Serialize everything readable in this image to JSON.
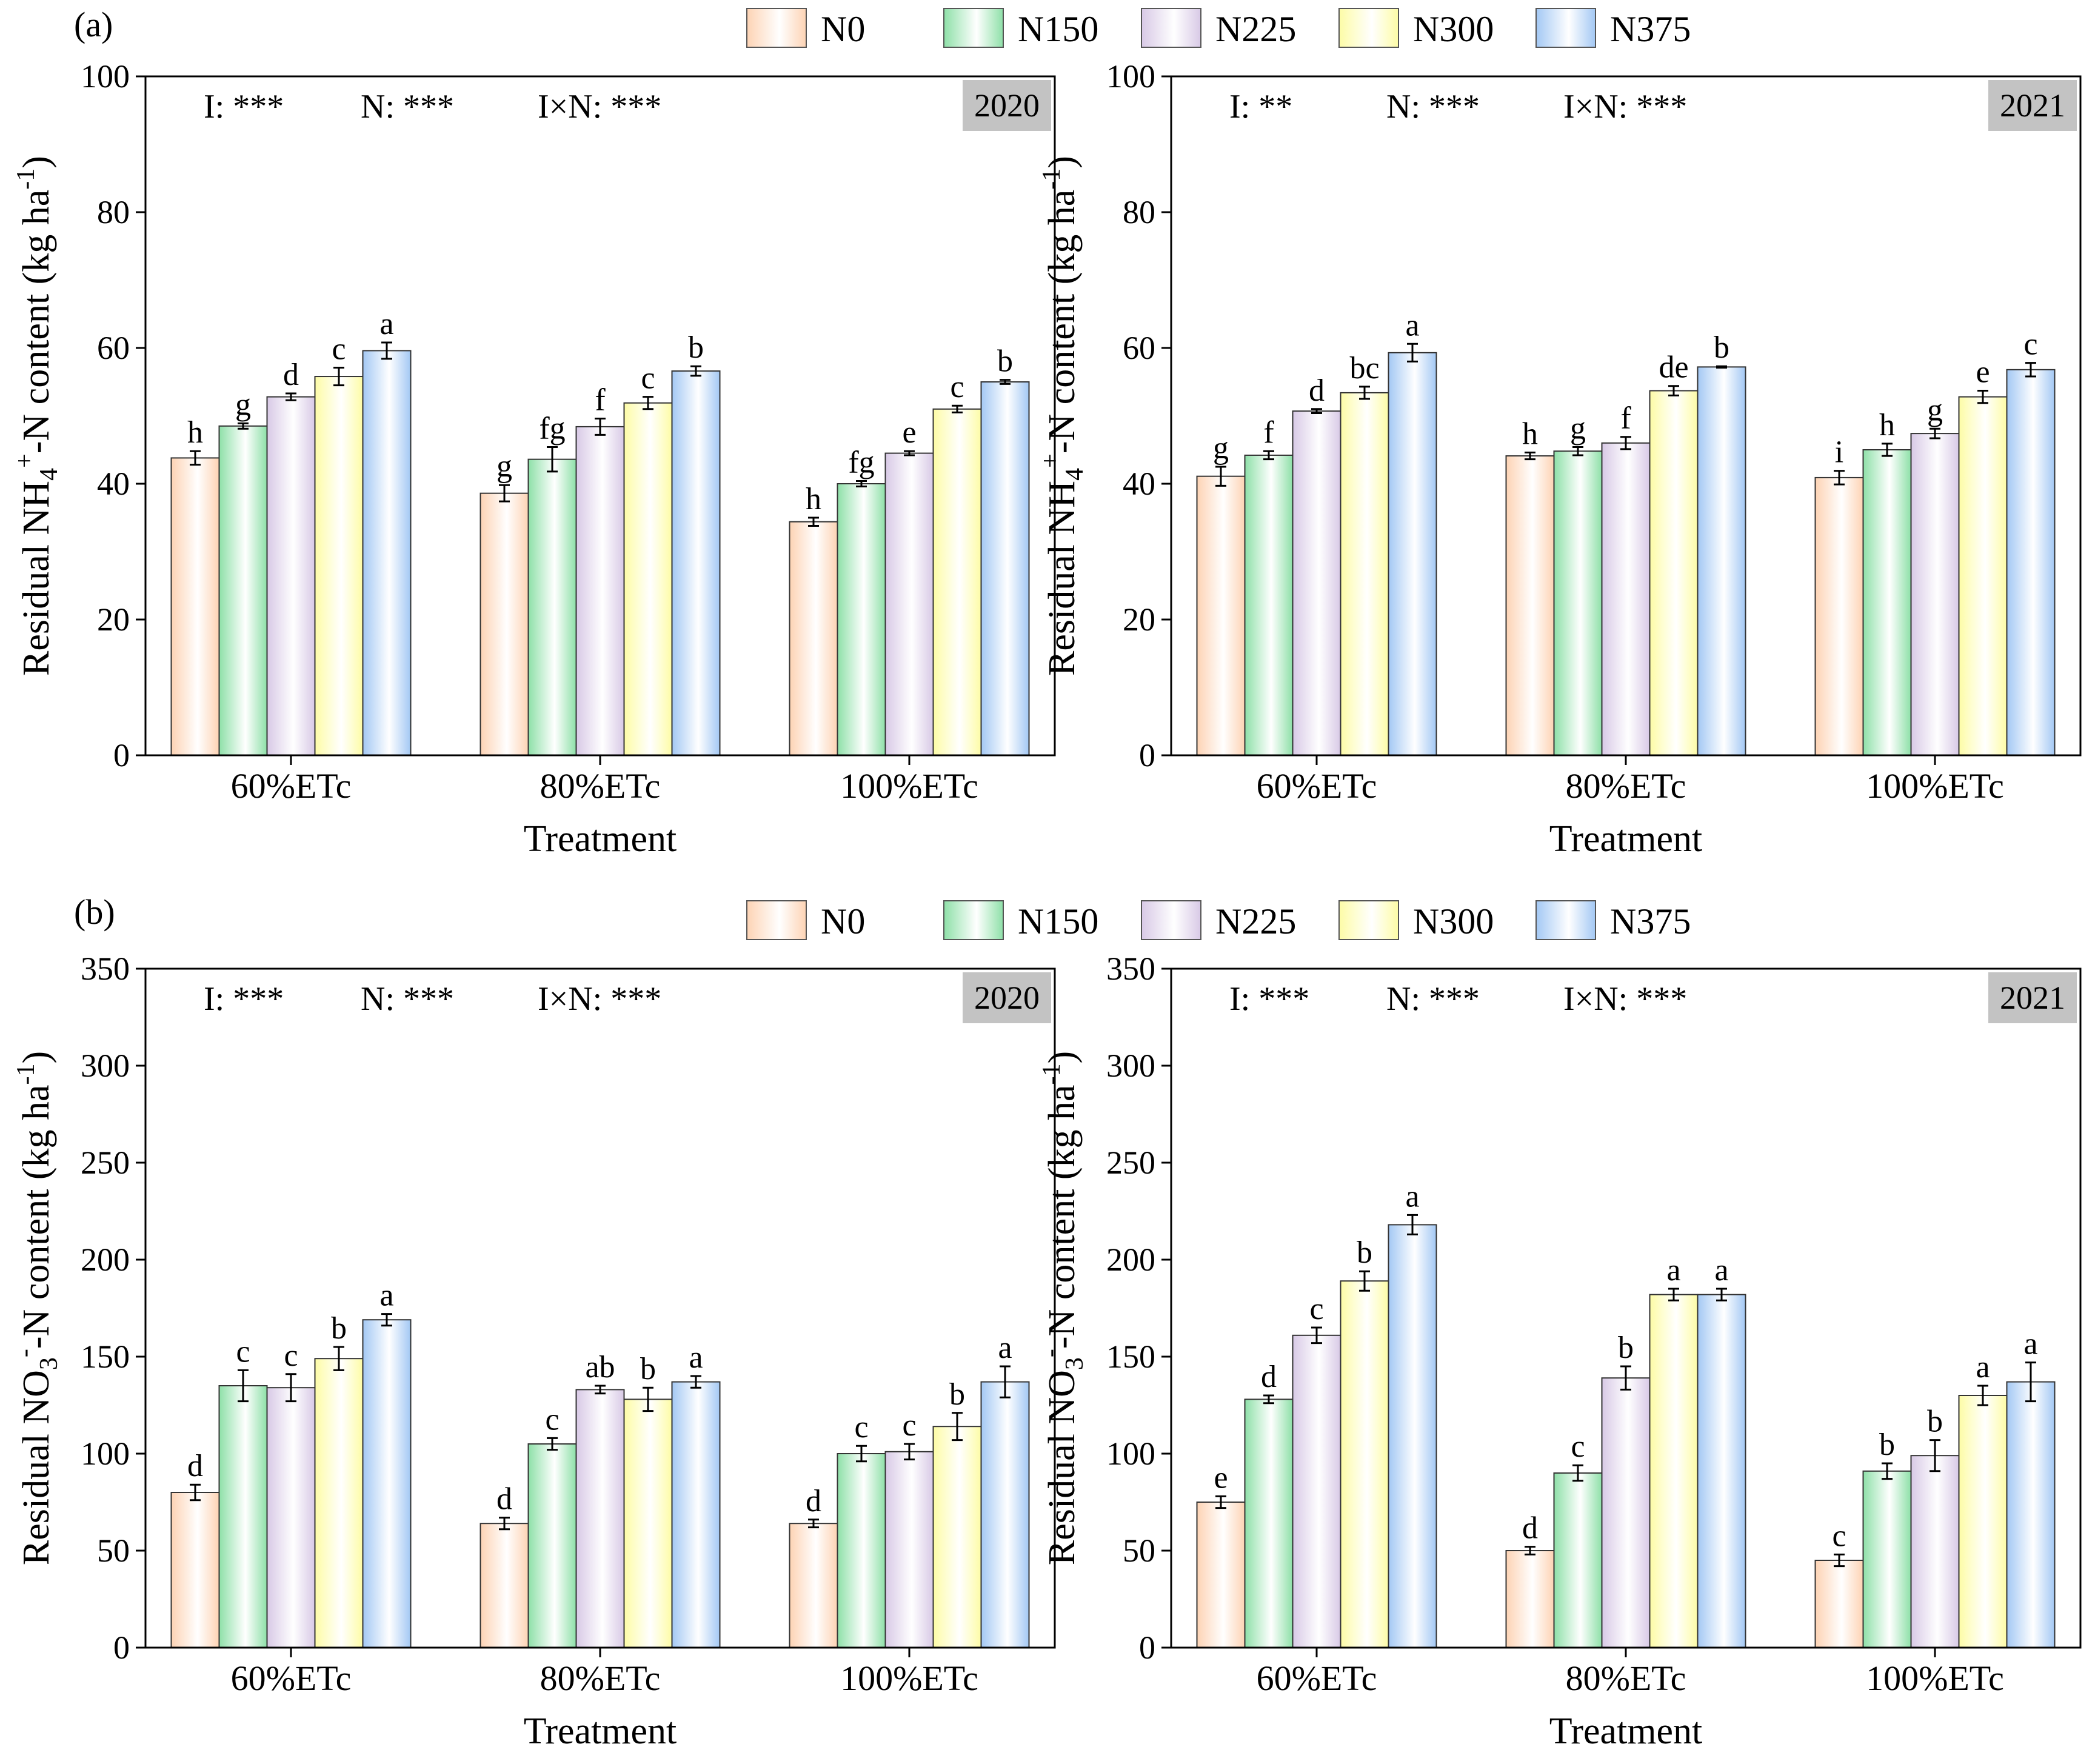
{
  "legend": [
    {
      "key": "N0",
      "color": "#fdd3b4",
      "label": "N0"
    },
    {
      "key": "N150",
      "color": "#8ee0a8",
      "label": "N150"
    },
    {
      "key": "N225",
      "color": "#d8c9e6",
      "label": "N225"
    },
    {
      "key": "N300",
      "color": "#fdfca6",
      "label": "N300"
    },
    {
      "key": "N375",
      "color": "#a3c8f4",
      "label": "N375"
    }
  ],
  "panel_labels": {
    "a": "(a)",
    "b": "(b)"
  },
  "chart_data": [
    {
      "type": "bar",
      "panel": "a",
      "year": "2020",
      "stats": {
        "I": "I: ***",
        "N": "N: ***",
        "IxN": "I×N: ***"
      },
      "xlabel": "Treatment",
      "ylabel_parts": [
        "Residual NH",
        "4",
        "+",
        "-N content (kg ha",
        "-1",
        ")"
      ],
      "ylim": [
        0,
        100
      ],
      "yticks": [
        0,
        20,
        40,
        60,
        80,
        100
      ],
      "categories": [
        "60%ETc",
        "80%ETc",
        "100%ETc"
      ],
      "series": [
        {
          "name": "N0",
          "values": [
            43.8,
            38.6,
            34.4
          ],
          "errors": [
            1.0,
            1.2,
            0.6
          ],
          "letters": [
            "h",
            "g",
            "h"
          ]
        },
        {
          "name": "N150",
          "values": [
            48.5,
            43.6,
            40.0
          ],
          "errors": [
            0.4,
            1.8,
            0.4
          ],
          "letters": [
            "g",
            "fg",
            "fg"
          ]
        },
        {
          "name": "N225",
          "values": [
            52.8,
            48.4,
            44.5
          ],
          "errors": [
            0.5,
            1.2,
            0.3
          ],
          "letters": [
            "d",
            "f",
            "e"
          ]
        },
        {
          "name": "N300",
          "values": [
            55.8,
            51.9,
            51.0
          ],
          "errors": [
            1.3,
            0.9,
            0.5
          ],
          "letters": [
            "c",
            "c",
            "c"
          ]
        },
        {
          "name": "N375",
          "values": [
            59.6,
            56.6,
            55.0
          ],
          "errors": [
            1.2,
            0.7,
            0.3
          ],
          "letters": [
            "a",
            "b",
            "b"
          ]
        }
      ]
    },
    {
      "type": "bar",
      "panel": "a",
      "year": "2021",
      "stats": {
        "I": "I: **",
        "N": "N: ***",
        "IxN": "I×N: ***"
      },
      "xlabel": "Treatment",
      "ylabel_parts": [
        "Residual NH",
        "4",
        "+",
        "-N content (kg ha",
        "-1",
        ")"
      ],
      "ylim": [
        0,
        100
      ],
      "yticks": [
        0,
        20,
        40,
        60,
        80,
        100
      ],
      "categories": [
        "60%ETc",
        "80%ETc",
        "100%ETc"
      ],
      "series": [
        {
          "name": "N0",
          "values": [
            41.1,
            44.1,
            40.9
          ],
          "errors": [
            1.4,
            0.5,
            1.0
          ],
          "letters": [
            "g",
            "h",
            "i"
          ]
        },
        {
          "name": "N150",
          "values": [
            44.2,
            44.8,
            45.0
          ],
          "errors": [
            0.6,
            0.6,
            0.9
          ],
          "letters": [
            "f",
            "g",
            "h"
          ]
        },
        {
          "name": "N225",
          "values": [
            50.7,
            46.0,
            47.4
          ],
          "errors": [
            0.3,
            0.9,
            0.7
          ],
          "letters": [
            "d",
            "f",
            "g"
          ]
        },
        {
          "name": "N300",
          "values": [
            53.4,
            53.7,
            52.8
          ],
          "errors": [
            0.9,
            0.7,
            0.9
          ],
          "letters": [
            "bc",
            "de",
            "e"
          ]
        },
        {
          "name": "N375",
          "values": [
            59.3,
            57.2,
            56.8
          ],
          "errors": [
            1.3,
            0.1,
            1.0
          ],
          "letters": [
            "a",
            "b",
            "c"
          ]
        }
      ]
    },
    {
      "type": "bar",
      "panel": "b",
      "year": "2020",
      "stats": {
        "I": "I: ***",
        "N": "N: ***",
        "IxN": "I×N: ***"
      },
      "xlabel": "Treatment",
      "ylabel_parts": [
        "Residual NO",
        "3",
        "-",
        "-N content (kg ha",
        "-1",
        ")"
      ],
      "ylim": [
        0,
        350
      ],
      "yticks": [
        0,
        50,
        100,
        150,
        200,
        250,
        300,
        350
      ],
      "categories": [
        "60%ETc",
        "80%ETc",
        "100%ETc"
      ],
      "series": [
        {
          "name": "N0",
          "values": [
            80,
            64,
            64
          ],
          "errors": [
            4,
            3,
            2
          ],
          "letters": [
            "d",
            "d",
            "d"
          ]
        },
        {
          "name": "N150",
          "values": [
            135,
            105,
            100
          ],
          "errors": [
            8,
            3,
            4
          ],
          "letters": [
            "c",
            "c",
            "c"
          ]
        },
        {
          "name": "N225",
          "values": [
            134,
            133,
            101
          ],
          "errors": [
            7,
            2,
            4
          ],
          "letters": [
            "c",
            "ab",
            "c"
          ]
        },
        {
          "name": "N300",
          "values": [
            149,
            128,
            114
          ],
          "errors": [
            6,
            6,
            7
          ],
          "letters": [
            "b",
            "b",
            "b"
          ]
        },
        {
          "name": "N375",
          "values": [
            169,
            137,
            137
          ],
          "errors": [
            3,
            3,
            8
          ],
          "letters": [
            "a",
            "a",
            "a"
          ]
        }
      ]
    },
    {
      "type": "bar",
      "panel": "b",
      "year": "2021",
      "stats": {
        "I": "I: ***",
        "N": "N: ***",
        "IxN": "I×N: ***"
      },
      "xlabel": "Treatment",
      "ylabel_parts": [
        "Residual NO",
        "3",
        "-",
        "-N content (kg ha",
        "-1",
        ")"
      ],
      "ylim": [
        0,
        350
      ],
      "yticks": [
        0,
        50,
        100,
        150,
        200,
        250,
        300,
        350
      ],
      "categories": [
        "60%ETc",
        "80%ETc",
        "100%ETc"
      ],
      "series": [
        {
          "name": "N0",
          "values": [
            75,
            50,
            45
          ],
          "errors": [
            3,
            2,
            3
          ],
          "letters": [
            "e",
            "d",
            "c"
          ]
        },
        {
          "name": "N150",
          "values": [
            128,
            90,
            91
          ],
          "errors": [
            2,
            4,
            4
          ],
          "letters": [
            "d",
            "c",
            "b"
          ]
        },
        {
          "name": "N225",
          "values": [
            161,
            139,
            99
          ],
          "errors": [
            4,
            6,
            8
          ],
          "letters": [
            "c",
            "b",
            "b"
          ]
        },
        {
          "name": "N300",
          "values": [
            189,
            182,
            130
          ],
          "errors": [
            5,
            3,
            5
          ],
          "letters": [
            "b",
            "a",
            "a"
          ]
        },
        {
          "name": "N375",
          "values": [
            218,
            182,
            137
          ],
          "errors": [
            5,
            3,
            10
          ],
          "letters": [
            "a",
            "a",
            "a"
          ]
        }
      ]
    }
  ]
}
